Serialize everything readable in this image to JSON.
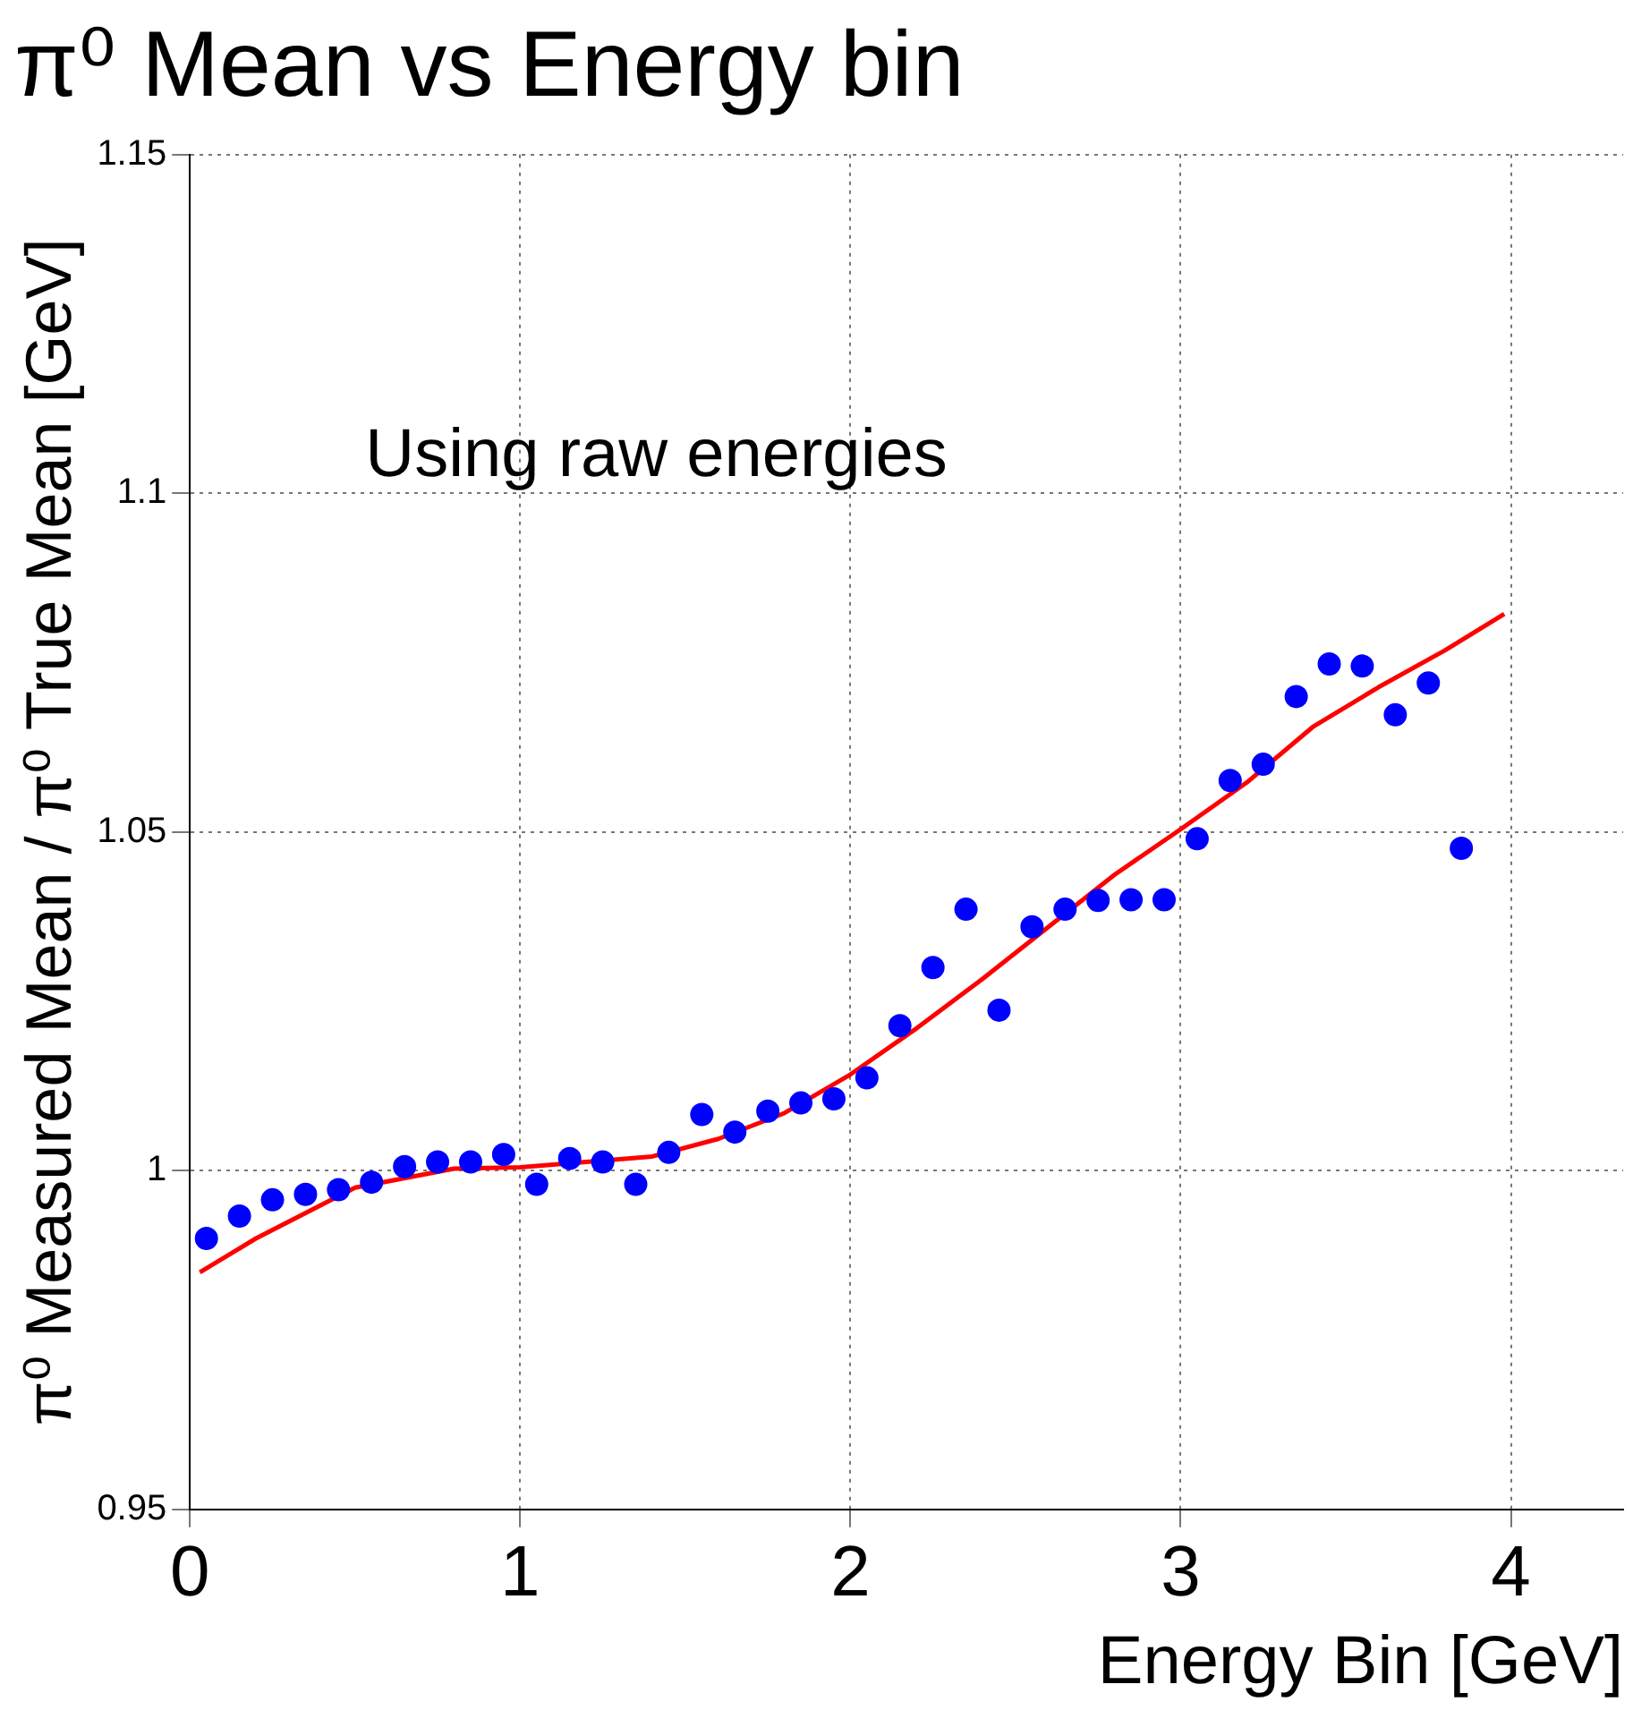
{
  "chart_data": {
    "type": "scatter",
    "title": "π⁰ Mean vs Energy bin",
    "xlabel": "Energy Bin [GeV]",
    "ylabel": "π⁰ Measured Mean / π⁰ True Mean [GeV]",
    "annotations": [
      "Using raw energies"
    ],
    "xlim": [
      0,
      4.34
    ],
    "xticks": [
      0,
      1,
      2,
      3,
      4
    ],
    "ylim": [
      0.95,
      1.15
    ],
    "yticks": [
      0.95,
      1,
      1.05,
      1.1,
      1.15
    ],
    "grid": true,
    "marker": "circle",
    "series": [
      {
        "color": "#0000ff",
        "x": [
          0.05,
          0.15,
          0.25,
          0.35,
          0.45,
          0.55,
          0.65,
          0.75,
          0.85,
          0.95,
          1.05,
          1.15,
          1.25,
          1.35,
          1.45,
          1.55,
          1.65,
          1.75,
          1.85,
          1.95,
          2.05,
          2.15,
          2.25,
          2.35,
          2.45,
          2.55,
          2.65,
          2.75,
          2.85,
          2.95,
          3.05,
          3.15,
          3.25,
          3.35,
          3.45,
          3.55,
          3.65,
          3.75,
          3.85
        ],
        "values": [
          0.99,
          0.9933,
          0.9957,
          0.9965,
          0.9972,
          0.9983,
          1.0006,
          1.0013,
          1.0013,
          1.0024,
          0.998,
          1.0018,
          1.0013,
          0.998,
          1.0027,
          1.0083,
          1.0057,
          1.0088,
          1.01,
          1.0106,
          1.0137,
          1.0214,
          1.03,
          1.0386,
          1.0237,
          1.036,
          1.0386,
          1.0399,
          1.04,
          1.04,
          1.049,
          1.0576,
          1.06,
          1.07,
          1.0748,
          1.0745,
          1.0673,
          1.072,
          1.0476
        ]
      },
      {
        "type": "line",
        "color": "#ff0000",
        "marker": "none",
        "x": [
          0.03,
          0.2,
          0.5,
          0.8,
          1.0,
          1.4,
          1.6,
          1.8,
          2.0,
          2.2,
          2.4,
          2.6,
          2.8,
          3.0,
          3.2,
          3.4,
          3.6,
          3.8,
          3.98
        ],
        "values": [
          0.985,
          0.99,
          0.9975,
          1.0003,
          1.0005,
          1.0021,
          1.0047,
          1.0085,
          1.0142,
          1.021,
          1.0283,
          1.036,
          1.0437,
          1.0504,
          1.0573,
          1.0655,
          1.0714,
          1.0768,
          1.0822
        ]
      }
    ]
  }
}
